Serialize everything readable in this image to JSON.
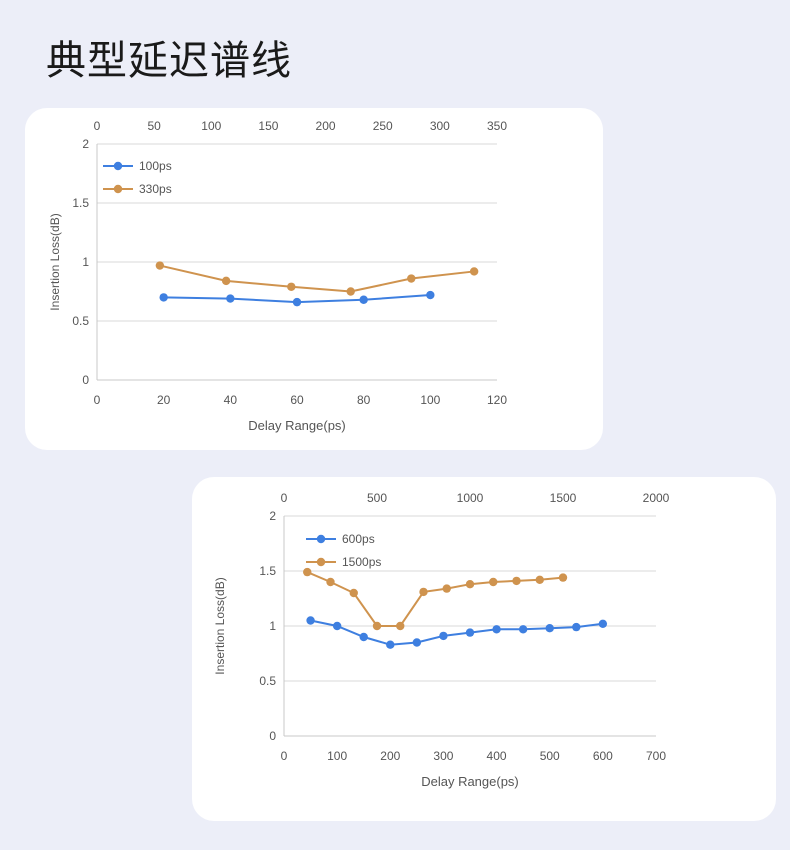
{
  "page": {
    "title": "典型延迟谱线"
  },
  "colors": {
    "blue": "#3e7fe0",
    "orange": "#cf934e",
    "grid": "#d8d8d8",
    "axis": "#c8c8c8"
  },
  "chart_data": [
    {
      "type": "line",
      "xlabel": "Delay Range(ps)",
      "ylabel": "Insertion Loss(dB)",
      "xlim": [
        0,
        120
      ],
      "x_ticks": [
        0,
        20,
        40,
        60,
        80,
        100,
        120
      ],
      "x2lim": [
        0,
        350
      ],
      "x2_ticks": [
        0,
        50,
        100,
        150,
        200,
        250,
        300,
        350
      ],
      "ylim": [
        0,
        2
      ],
      "y_ticks": [
        0,
        0.5,
        1,
        1.5,
        2
      ],
      "grid": true,
      "legend": "top-left",
      "series": [
        {
          "name": "100ps",
          "axis": "bottom",
          "color": "#3e7fe0",
          "x": [
            20,
            40,
            60,
            80,
            100
          ],
          "y": [
            0.7,
            0.69,
            0.66,
            0.68,
            0.72
          ]
        },
        {
          "name": "330ps",
          "axis": "top",
          "color": "#cf934e",
          "x": [
            55,
            113,
            170,
            222,
            275,
            330
          ],
          "y": [
            0.97,
            0.84,
            0.79,
            0.75,
            0.86,
            0.92
          ]
        }
      ]
    },
    {
      "type": "line",
      "xlabel": "Delay Range(ps)",
      "ylabel": "Insertion Loss(dB)",
      "xlim": [
        0,
        700
      ],
      "x_ticks": [
        0,
        100,
        200,
        300,
        400,
        500,
        600,
        700
      ],
      "x2lim": [
        0,
        2000
      ],
      "x2_ticks": [
        0,
        500,
        1000,
        1500,
        2000
      ],
      "ylim": [
        0,
        2
      ],
      "y_ticks": [
        0,
        0.5,
        1,
        1.5,
        2
      ],
      "grid": true,
      "legend": "top-left",
      "series": [
        {
          "name": "600ps",
          "axis": "bottom",
          "color": "#3e7fe0",
          "x": [
            50,
            100,
            150,
            200,
            250,
            300,
            350,
            400,
            450,
            500,
            550,
            600
          ],
          "y": [
            1.05,
            1.0,
            0.9,
            0.83,
            0.85,
            0.91,
            0.94,
            0.97,
            0.97,
            0.98,
            0.99,
            1.02
          ]
        },
        {
          "name": "1500ps",
          "axis": "top",
          "color": "#cf934e",
          "x": [
            125,
            250,
            375,
            500,
            625,
            750,
            875,
            1000,
            1125,
            1250,
            1375,
            1500
          ],
          "y": [
            1.49,
            1.4,
            1.3,
            1.0,
            1.0,
            1.31,
            1.34,
            1.38,
            1.4,
            1.41,
            1.42,
            1.44
          ]
        }
      ]
    }
  ]
}
